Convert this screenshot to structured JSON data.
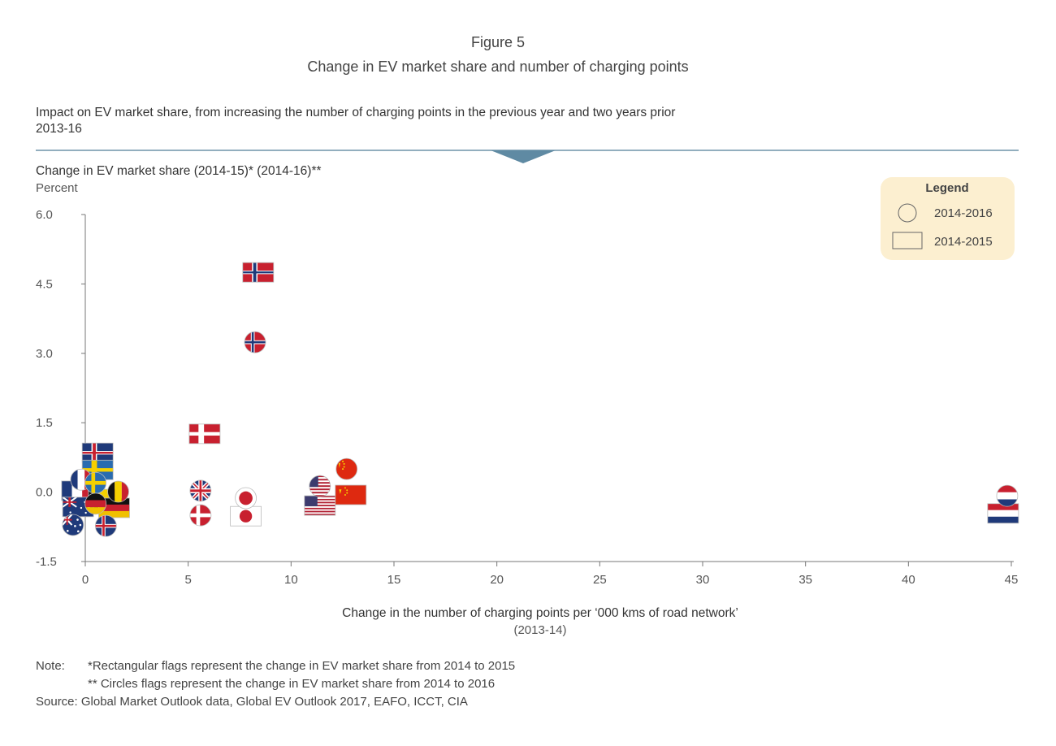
{
  "figure_label": "Figure 5",
  "title": "Change in EV market share and number of charging points",
  "subtitle": "Impact on EV market share, from increasing the number of charging points in the previous year and two years prior",
  "period": "2013-16",
  "colors": {
    "header_line": "#6f93a8",
    "legend_bg": "#fcefd0",
    "axis": "#777777"
  },
  "chart_data": {
    "type": "scatter",
    "ylabel": "Change in EV market share (2014-15)* (2014-16)**",
    "yunit": "Percent",
    "xlabel": "Change in the number of charging points per ‘000 kms of road network’",
    "xlabel_sub": "(2013-14)",
    "xlim": [
      0,
      45
    ],
    "ylim": [
      -1.5,
      6.0
    ],
    "xticks": [
      "0",
      "5",
      "10",
      "15",
      "20",
      "25",
      "30",
      "35",
      "40",
      "45"
    ],
    "yticks": [
      "6.0",
      "4.5",
      "3.0",
      "1.5",
      "0.0",
      "-1.5"
    ],
    "legend": {
      "title": "Legend",
      "position": "top-right",
      "items": [
        {
          "marker": "circle",
          "label": "2014-2016"
        },
        {
          "marker": "rectangle",
          "label": "2014-2015"
        }
      ]
    },
    "series": [
      {
        "marker": "rectangle",
        "period": "2014-2015",
        "points": [
          {
            "flag": "iceland",
            "x": 0.6,
            "y": 0.85
          },
          {
            "flag": "sweden",
            "x": 0.6,
            "y": 0.48
          },
          {
            "flag": "france",
            "x": -0.4,
            "y": 0.03
          },
          {
            "flag": "belgium",
            "x": 0.9,
            "y": -0.15
          },
          {
            "flag": "germany",
            "x": 1.4,
            "y": -0.34
          },
          {
            "flag": "australia",
            "x": -0.35,
            "y": -0.32
          },
          {
            "flag": "denmark",
            "x": 5.8,
            "y": 1.26
          },
          {
            "flag": "norway",
            "x": 8.4,
            "y": 4.75
          },
          {
            "flag": "japan",
            "x": 7.8,
            "y": -0.52
          },
          {
            "flag": "usa",
            "x": 11.4,
            "y": -0.29
          },
          {
            "flag": "china",
            "x": 12.9,
            "y": -0.06
          },
          {
            "flag": "netherlands",
            "x": 44.6,
            "y": -0.46
          }
        ]
      },
      {
        "marker": "circle",
        "period": "2014-2016",
        "points": [
          {
            "flag": "france",
            "x": -0.2,
            "y": 0.27
          },
          {
            "flag": "sweden",
            "x": 0.5,
            "y": 0.2
          },
          {
            "flag": "belgium",
            "x": 1.6,
            "y": 0.01
          },
          {
            "flag": "germany",
            "x": 0.5,
            "y": -0.25
          },
          {
            "flag": "australia",
            "x": -0.6,
            "y": -0.71
          },
          {
            "flag": "iceland",
            "x": 1.0,
            "y": -0.73
          },
          {
            "flag": "uk",
            "x": 5.6,
            "y": 0.03
          },
          {
            "flag": "denmark",
            "x": 5.6,
            "y": -0.5
          },
          {
            "flag": "japan",
            "x": 7.8,
            "y": -0.13
          },
          {
            "flag": "norway",
            "x": 8.25,
            "y": 3.24
          },
          {
            "flag": "usa",
            "x": 11.4,
            "y": 0.13
          },
          {
            "flag": "china",
            "x": 12.7,
            "y": 0.5
          },
          {
            "flag": "netherlands",
            "x": 44.8,
            "y": -0.08
          }
        ]
      }
    ]
  },
  "notes": {
    "label": "Note:",
    "note1": "*Rectangular flags represent the change in EV market share from 2014 to 2015",
    "note2": "** Circles flags represent the change in EV market share from 2014 to 2016",
    "source_label": "Source:",
    "source": "Global Market Outlook data, Global EV Outlook 2017, EAFO, ICCT, CIA"
  }
}
